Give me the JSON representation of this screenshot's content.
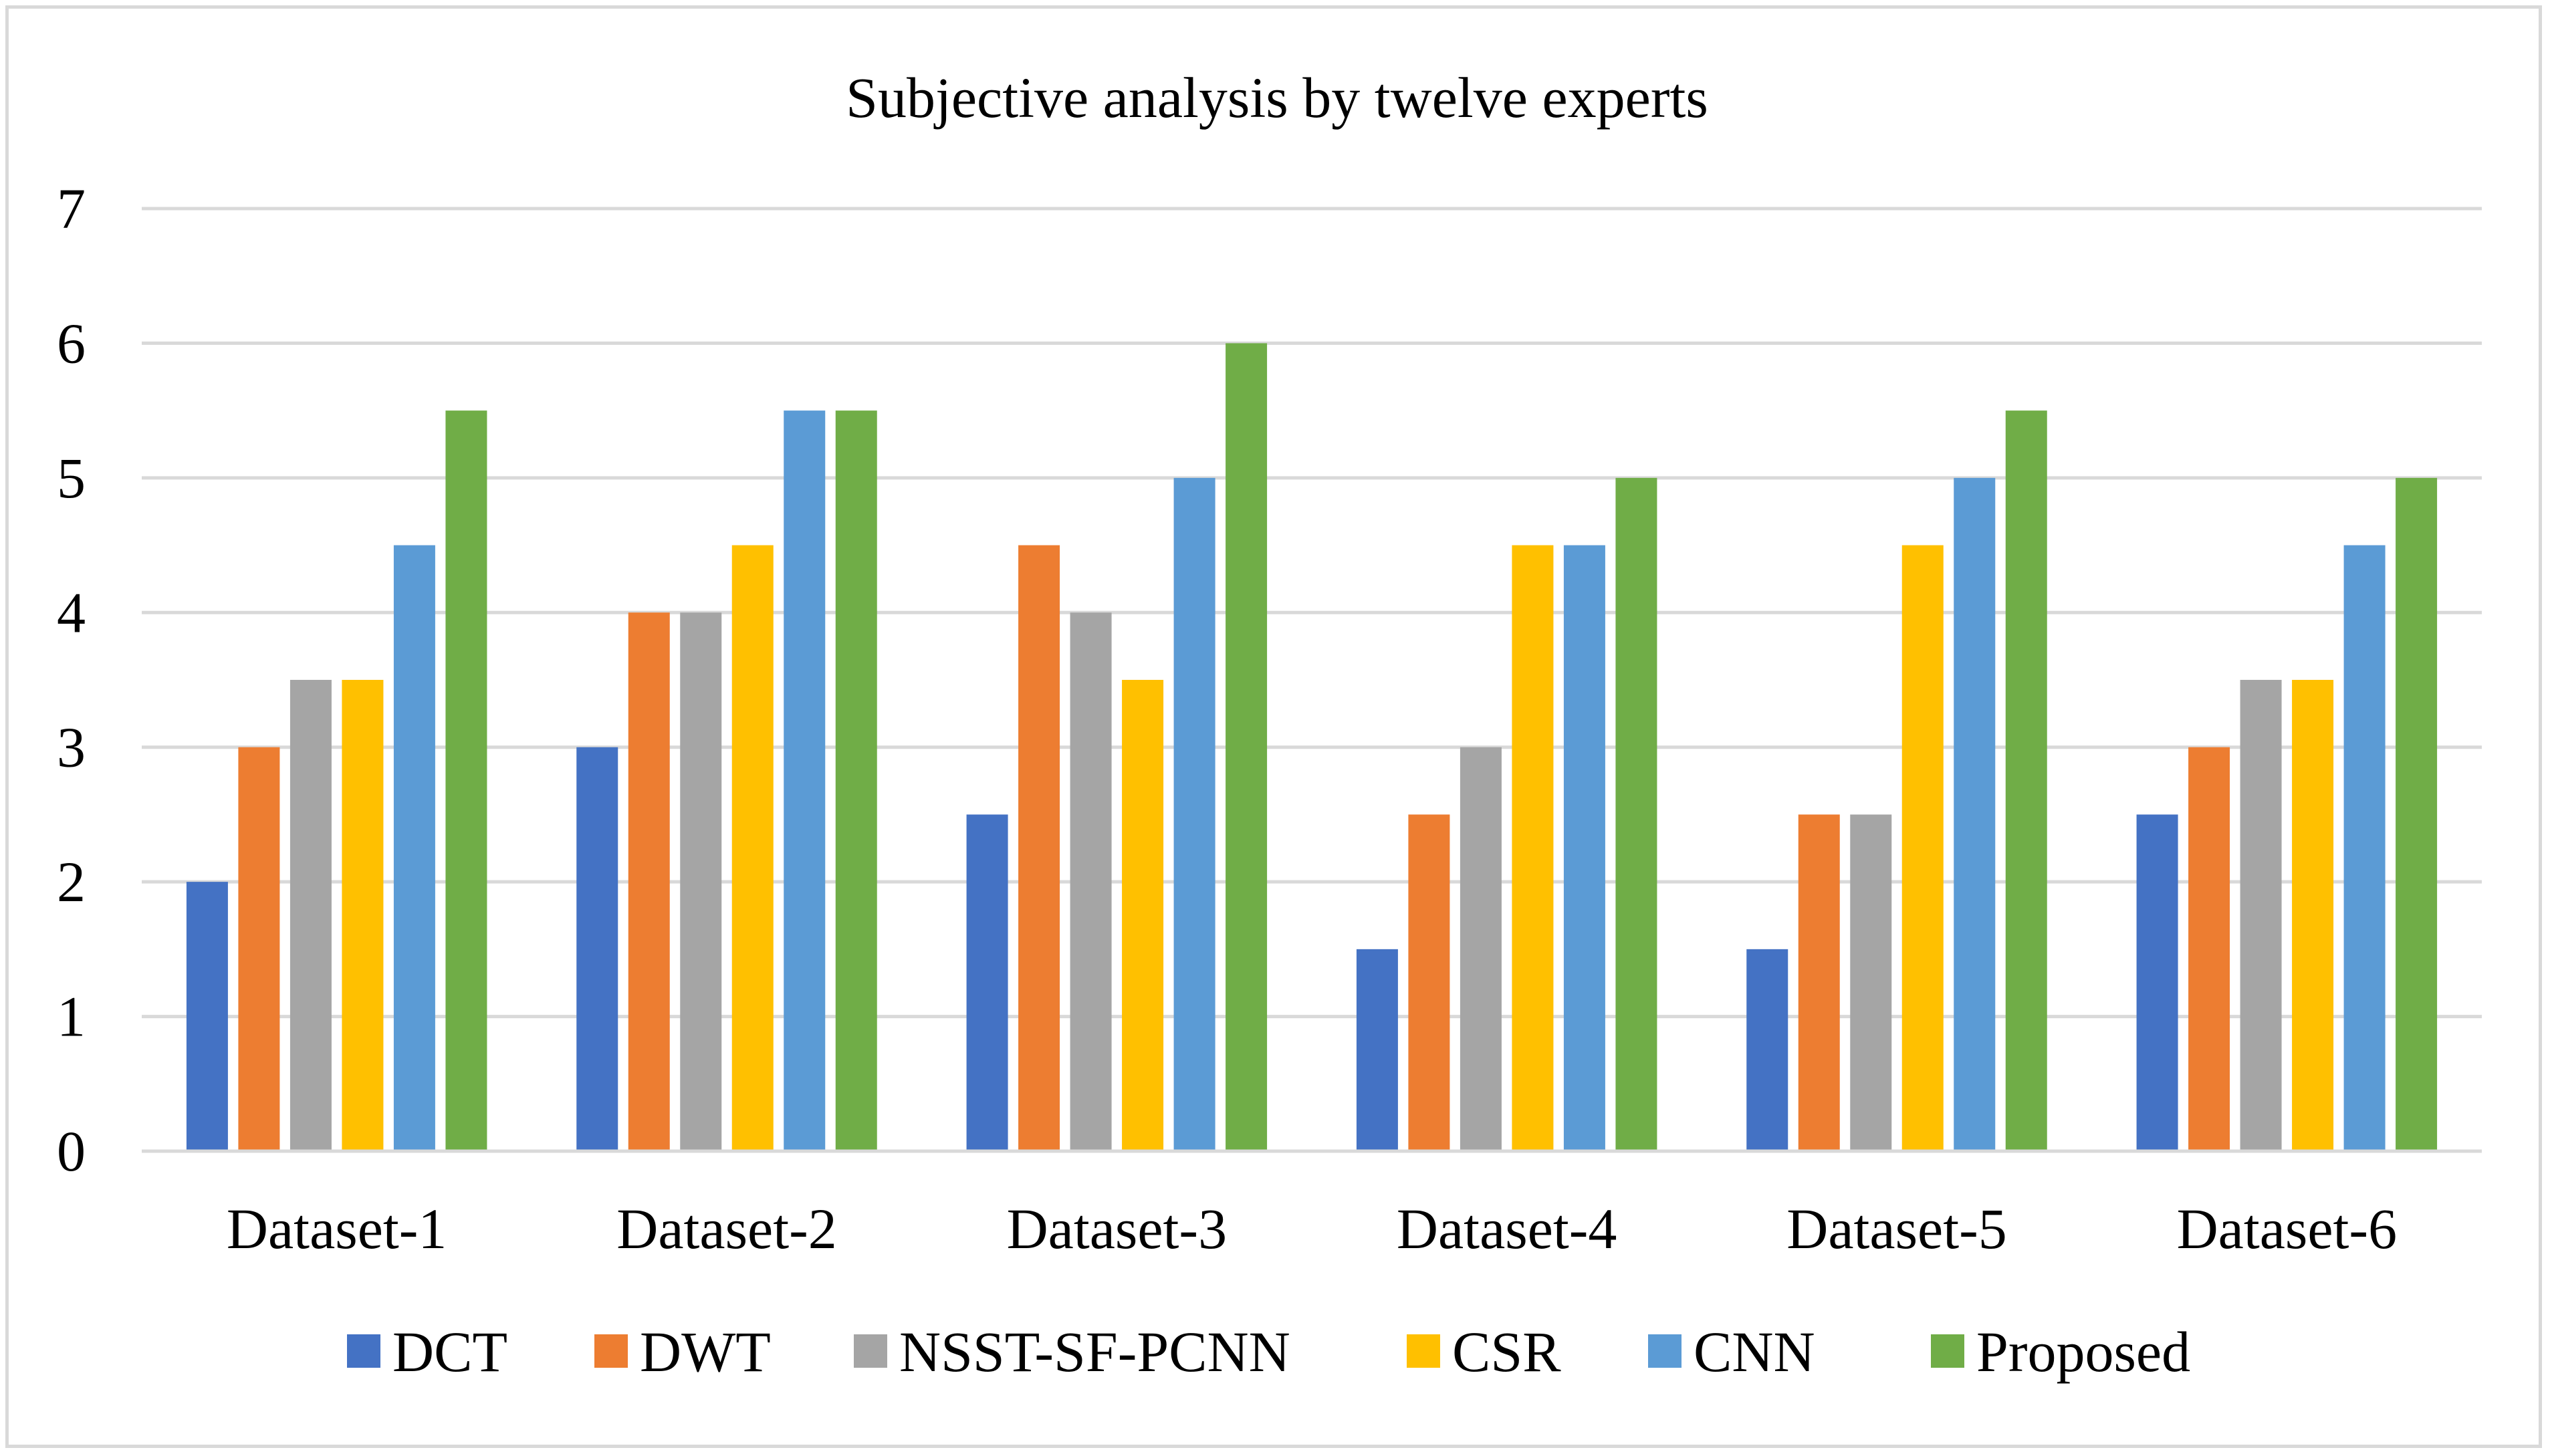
{
  "chart_data": {
    "type": "bar",
    "title": "Subjective analysis by twelve experts",
    "xlabel": "",
    "ylabel": "",
    "ylim": [
      0,
      7
    ],
    "yticks": [
      "0",
      "1",
      "2",
      "3",
      "4",
      "5",
      "6",
      "7"
    ],
    "grid": true,
    "legend_position": "bottom",
    "categories": [
      "Dataset-1",
      "Dataset-2",
      "Dataset-3",
      "Dataset-4",
      "Dataset-5",
      "Dataset-6"
    ],
    "series": [
      {
        "name": "DCT",
        "color": "#4472c4",
        "values": [
          2,
          3,
          2.5,
          1.5,
          1.5,
          2.5
        ]
      },
      {
        "name": "DWT",
        "color": "#ed7d31",
        "values": [
          3,
          4,
          4.5,
          2.5,
          2.5,
          3
        ]
      },
      {
        "name": "NSST-SF-PCNN",
        "color": "#a5a5a5",
        "values": [
          3.5,
          4,
          4,
          3,
          2.5,
          3.5
        ]
      },
      {
        "name": "CSR",
        "color": "#ffc000",
        "values": [
          3.5,
          4.5,
          3.5,
          4.5,
          4.5,
          3.5
        ]
      },
      {
        "name": "CNN",
        "color": "#5b9bd5",
        "values": [
          4.5,
          5.5,
          5,
          4.5,
          5,
          4.5
        ]
      },
      {
        "name": "Proposed",
        "color": "#70ad47",
        "values": [
          5.5,
          5.5,
          6,
          5,
          5.5,
          5
        ]
      }
    ],
    "gridline_color": "#d9d9d9",
    "axis_color": "#d9d9d9"
  }
}
